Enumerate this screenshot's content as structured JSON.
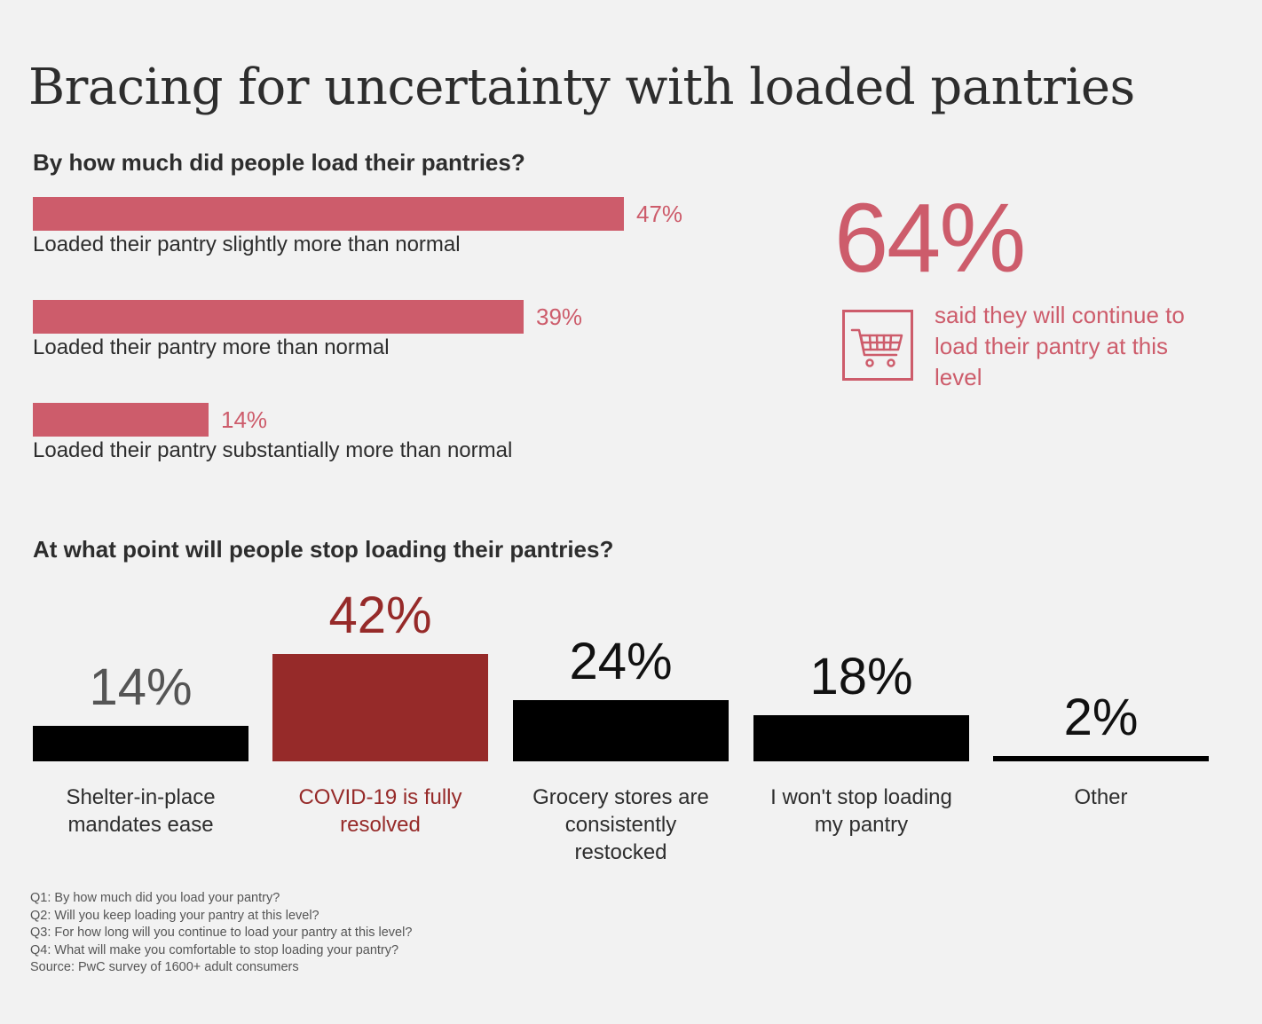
{
  "title": "Bracing for uncertainty with loaded pantries",
  "colors": {
    "pink": "#cd5c6b",
    "dark_red": "#962a29",
    "black": "#000000",
    "text": "#2d2d2d",
    "background": "#f2f2f2"
  },
  "section1": {
    "heading": "By how much did people load their pantries?"
  },
  "callout": {
    "value": "64%",
    "text": "said they will continue to load their pantry at this level",
    "icon": "shopping-cart-icon"
  },
  "section2": {
    "heading": "At what point will people stop loading their pantries?"
  },
  "chart_data": [
    {
      "type": "bar",
      "orientation": "horizontal",
      "title": "By how much did people load their pantries?",
      "categories": [
        "Loaded their pantry slightly more than normal",
        "Loaded their pantry more than normal",
        "Loaded their pantry substantially more than normal"
      ],
      "values": [
        47,
        39,
        14
      ],
      "value_labels": [
        "47%",
        "39%",
        "14%"
      ],
      "color": "#cd5c6b",
      "xlim": [
        0,
        47
      ]
    },
    {
      "type": "bar",
      "orientation": "vertical",
      "title": "At what point will people stop loading their pantries?",
      "categories": [
        [
          "Shelter-in-place",
          "mandates ease"
        ],
        [
          "COVID-19 is fully",
          "resolved"
        ],
        [
          "Grocery stores are",
          "consistently",
          "restocked"
        ],
        [
          "I won't stop loading",
          "my pantry"
        ],
        [
          "Other"
        ]
      ],
      "values": [
        14,
        42,
        24,
        18,
        2
      ],
      "value_labels": [
        "14%",
        "42%",
        "24%",
        "18%",
        "2%"
      ],
      "highlight_index": 1,
      "bar_colors": [
        "#000000",
        "#962a29",
        "#000000",
        "#000000",
        "#000000"
      ],
      "label_colors": [
        "#2d2d2d",
        "#962a29",
        "#2d2d2d",
        "#2d2d2d",
        "#2d2d2d"
      ],
      "value_label_colors": [
        "#555555",
        "#962a29",
        "#111111",
        "#111111",
        "#111111"
      ],
      "ylim": [
        0,
        42
      ]
    }
  ],
  "footnotes": [
    "Q1: By how much did you load your pantry?",
    "Q2: Will you keep loading your pantry at this level?",
    "Q3: For how long will you continue to load your pantry at this level?",
    "Q4: What will make you comfortable to stop loading your pantry?",
    "Source: PwC survey of 1600+ adult consumers"
  ]
}
